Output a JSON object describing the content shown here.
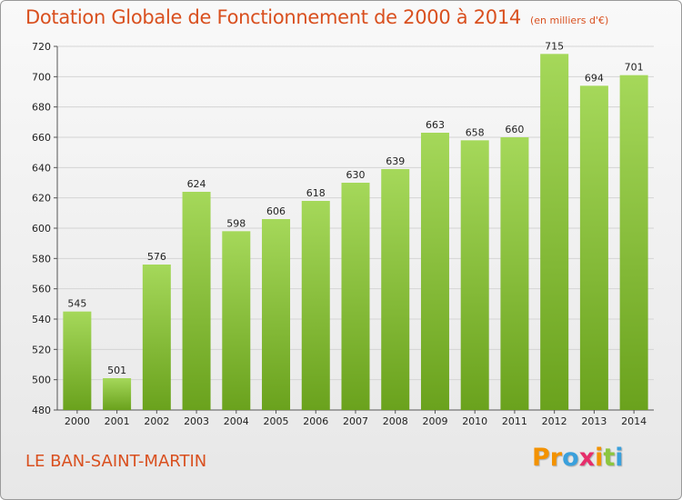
{
  "title": "Dotation Globale de Fonctionnement de 2000 à 2014",
  "unit_note": "(en milliers d'€)",
  "commune": "LE BAN-SAINT-MARTIN",
  "logo": {
    "text": "Proxiti",
    "letters": [
      {
        "char": "P",
        "color": "#f39200"
      },
      {
        "char": "r",
        "color": "#f39200"
      },
      {
        "char": "o",
        "color": "#3aa0dc"
      },
      {
        "char": "x",
        "color": "#e62e6b"
      },
      {
        "char": "i",
        "color": "#f39200"
      },
      {
        "char": "t",
        "color": "#8cc63f"
      },
      {
        "char": "i",
        "color": "#3aa0dc"
      }
    ]
  },
  "colors": {
    "accent": "#d9501f",
    "bar_top": "#a5d85a",
    "bar_bottom": "#6aa21d",
    "grid": "#d4d4d4"
  },
  "chart_data": {
    "type": "bar",
    "title": "Dotation Globale de Fonctionnement de 2000 à 2014",
    "xlabel": "",
    "ylabel": "",
    "categories": [
      "2000",
      "2001",
      "2002",
      "2003",
      "2004",
      "2005",
      "2006",
      "2007",
      "2008",
      "2009",
      "2010",
      "2011",
      "2012",
      "2013",
      "2014"
    ],
    "values": [
      545,
      501,
      576,
      624,
      598,
      606,
      618,
      630,
      639,
      663,
      658,
      660,
      715,
      694,
      701
    ],
    "ylim": [
      480,
      720
    ],
    "yticks": [
      480,
      500,
      520,
      540,
      560,
      580,
      600,
      620,
      640,
      660,
      680,
      700,
      720
    ],
    "grid": true,
    "legend": "none"
  }
}
